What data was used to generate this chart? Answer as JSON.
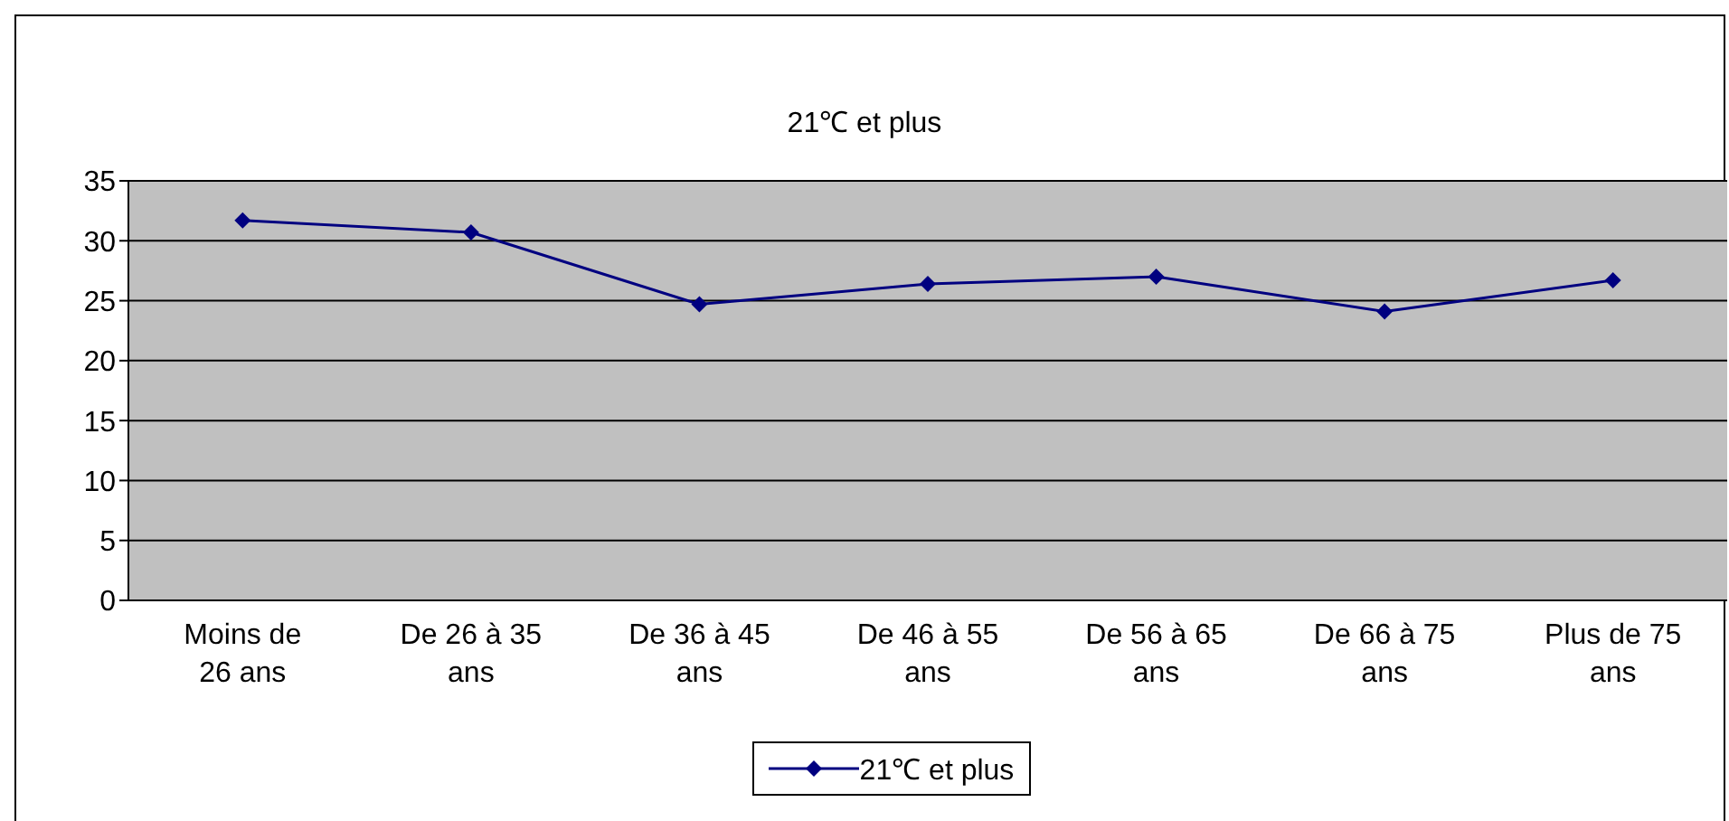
{
  "chart_data": {
    "type": "line",
    "title": "21℃ et plus",
    "categories": [
      "Moins de 26 ans",
      "De 26 à 35 ans",
      "De 36 à 45 ans",
      "De 46 à 55 ans",
      "De 56 à 65 ans",
      "De 66 à 75 ans",
      "Plus de 75 ans"
    ],
    "series": [
      {
        "name": "21℃ et plus",
        "color": "#000080",
        "values": [
          31.7,
          30.7,
          24.7,
          26.4,
          27.0,
          24.1,
          26.7
        ]
      }
    ],
    "ylim": [
      0,
      35
    ],
    "yticks": [
      0,
      5,
      10,
      15,
      20,
      25,
      30,
      35
    ],
    "grid": "y",
    "legend": "bottom",
    "marker": "diamond",
    "line_style": "solid"
  }
}
